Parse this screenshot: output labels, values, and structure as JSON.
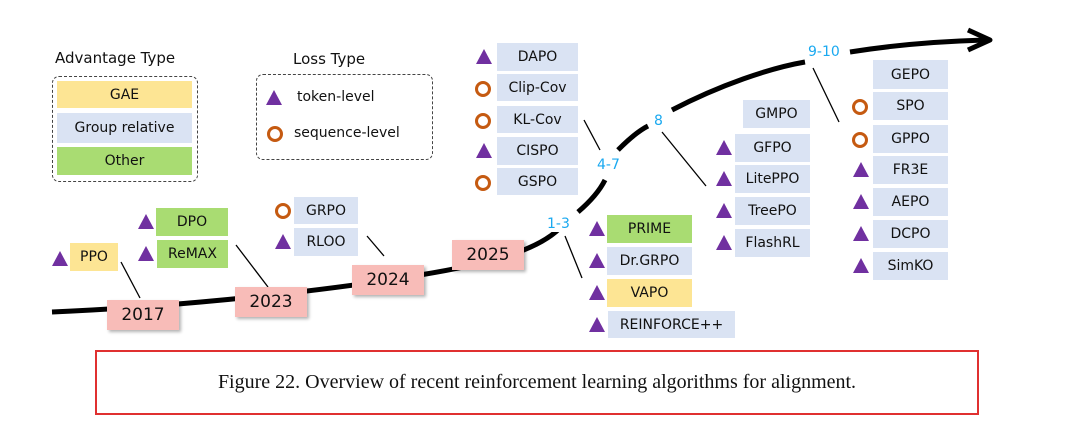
{
  "legend": {
    "advantage_title": "Advantage Type",
    "advantage_items": [
      "GAE",
      "Group relative",
      "Other"
    ],
    "loss_title": "Loss Type",
    "loss_items": [
      {
        "marker": "triangle",
        "label": "token-level"
      },
      {
        "marker": "circle",
        "label": "sequence-level"
      }
    ]
  },
  "colors": {
    "GAE": "#fde594",
    "Group relative": "#dae3f3",
    "Other": "#a9dc72",
    "year": "#f8bcb8",
    "token-level": "#7030a0",
    "sequence-level": "#c55a11",
    "period_label": "#1aa9f0"
  },
  "years": [
    "2017",
    "2023",
    "2024",
    "2025"
  ],
  "periods": [
    "1-3",
    "4-7",
    "8",
    "9-10"
  ],
  "algorithms": {
    "y2017": [
      {
        "name": "PPO",
        "adv": "GAE",
        "loss": "token-level"
      }
    ],
    "y2023": [
      {
        "name": "DPO",
        "adv": "Other",
        "loss": "token-level"
      },
      {
        "name": "ReMAX",
        "adv": "Other",
        "loss": "token-level"
      }
    ],
    "y2024": [
      {
        "name": "GRPO",
        "adv": "Group relative",
        "loss": "sequence-level"
      },
      {
        "name": "RLOO",
        "adv": "Group relative",
        "loss": "token-level"
      }
    ],
    "p1_3": [
      {
        "name": "PRIME",
        "adv": "Other",
        "loss": "token-level"
      },
      {
        "name": "Dr.GRPO",
        "adv": "Group relative",
        "loss": "token-level"
      },
      {
        "name": "VAPO",
        "adv": "GAE",
        "loss": "token-level"
      },
      {
        "name": "REINFORCE++",
        "adv": "Group relative",
        "loss": "token-level"
      }
    ],
    "p4_7": [
      {
        "name": "DAPO",
        "adv": "Group relative",
        "loss": "token-level"
      },
      {
        "name": "Clip-Cov",
        "adv": "Group relative",
        "loss": "sequence-level"
      },
      {
        "name": "KL-Cov",
        "adv": "Group relative",
        "loss": "sequence-level"
      },
      {
        "name": "CISPO",
        "adv": "Group relative",
        "loss": "token-level"
      },
      {
        "name": "GSPO",
        "adv": "Group relative",
        "loss": "sequence-level"
      }
    ],
    "p8": [
      {
        "name": "GMPO",
        "adv": "Group relative",
        "loss": ""
      },
      {
        "name": "GFPO",
        "adv": "Group relative",
        "loss": "token-level"
      },
      {
        "name": "LitePPO",
        "adv": "Group relative",
        "loss": "token-level"
      },
      {
        "name": "TreePO",
        "adv": "Group relative",
        "loss": "token-level"
      },
      {
        "name": "FlashRL",
        "adv": "Group relative",
        "loss": "token-level"
      }
    ],
    "p9_10": [
      {
        "name": "GEPO",
        "adv": "Group relative",
        "loss": ""
      },
      {
        "name": "SPO",
        "adv": "Group relative",
        "loss": "sequence-level"
      },
      {
        "name": "GPPO",
        "adv": "Group relative",
        "loss": "sequence-level"
      },
      {
        "name": "FR3E",
        "adv": "Group relative",
        "loss": "token-level"
      },
      {
        "name": "AEPO",
        "adv": "Group relative",
        "loss": "token-level"
      },
      {
        "name": "DCPO",
        "adv": "Group relative",
        "loss": "token-level"
      },
      {
        "name": "SimKO",
        "adv": "Group relative",
        "loss": "token-level"
      }
    ]
  },
  "caption": "Figure 22. Overview of recent reinforcement learning algorithms for alignment."
}
